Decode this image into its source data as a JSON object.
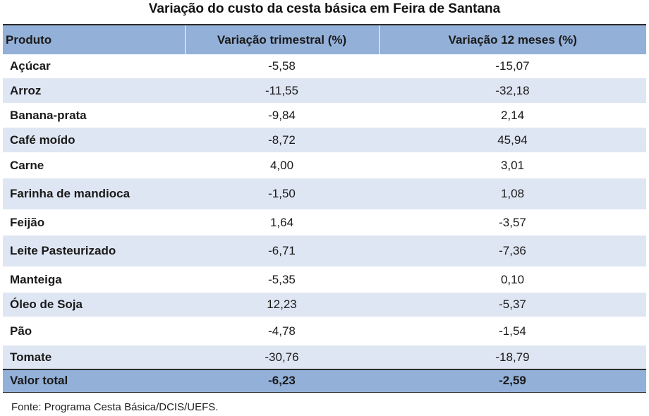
{
  "title": "Variação do custo da cesta básica em Feira de Santana",
  "columns": [
    "Produto",
    "Variação trimestral (%)",
    "Variação 12 meses (%)"
  ],
  "rows": [
    {
      "produto": "Açúcar",
      "trimestral": "-5,58",
      "doze_meses": "-15,07"
    },
    {
      "produto": "Arroz",
      "trimestral": "-11,55",
      "doze_meses": "-32,18"
    },
    {
      "produto": "Banana-prata",
      "trimestral": "-9,84",
      "doze_meses": "2,14"
    },
    {
      "produto": "Café moído",
      "trimestral": "-8,72",
      "doze_meses": "45,94"
    },
    {
      "produto": "Carne",
      "trimestral": "4,00",
      "doze_meses": "3,01"
    },
    {
      "produto": "Farinha de mandioca",
      "trimestral": "-1,50",
      "doze_meses": "1,08"
    },
    {
      "produto": "Feijão",
      "trimestral": "1,64",
      "doze_meses": "-3,57"
    },
    {
      "produto": "Leite Pasteurizado",
      "trimestral": "-6,71",
      "doze_meses": "-7,36"
    },
    {
      "produto": "Manteiga",
      "trimestral": "-5,35",
      "doze_meses": "0,10"
    },
    {
      "produto": "Óleo de Soja",
      "trimestral": "12,23",
      "doze_meses": "-5,37"
    },
    {
      "produto": "Pão",
      "trimestral": "-4,78",
      "doze_meses": "-1,54"
    },
    {
      "produto": "Tomate",
      "trimestral": "-30,76",
      "doze_meses": "-18,79"
    }
  ],
  "total": {
    "label": "Valor total",
    "trimestral": "-6,23",
    "doze_meses": "-2,59"
  },
  "source": "Fonte: Programa Cesta Básica/DCIS/UEFS.",
  "colors": {
    "header_bg": "#93b0d8",
    "stripe_bg": "#dfe6f3"
  }
}
